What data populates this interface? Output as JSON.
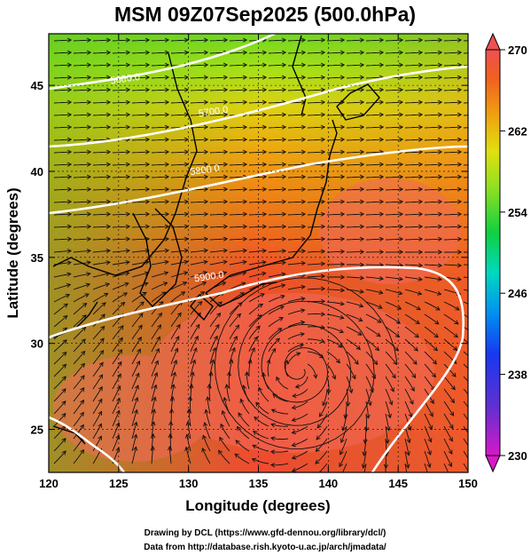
{
  "title": "MSM 09Z07Sep2025 (500.0hPa)",
  "xlabel": "Longitude (degrees)",
  "ylabel": "Latitude  (degrees)",
  "credits": [
    "Drawing by DCL (https://www.gfd-dennou.org/library/dcl/)",
    "Data from http://database.rish.kyoto-u.ac.jp/arch/jmadata/"
  ],
  "chart_data": {
    "type": "heatmap",
    "x_range": [
      120,
      150
    ],
    "y_range": [
      22.5,
      48
    ],
    "x_ticks": [
      120,
      125,
      130,
      135,
      140,
      145,
      150
    ],
    "y_ticks": [
      25,
      30,
      35,
      40,
      45
    ],
    "colorbar": {
      "min": 230,
      "max": 270,
      "ticks": [
        230,
        238,
        246,
        254,
        262,
        270
      ],
      "colors": [
        "#e010d0",
        "#5050e0",
        "#1030f0",
        "#00a0f0",
        "#00e0b0",
        "#20d040",
        "#80e020",
        "#d0e010",
        "#f0c010",
        "#f08010",
        "#f04020",
        "#f06050"
      ]
    },
    "contours": [
      {
        "label": "5600.0",
        "lon": 125.5,
        "lat": 45.2
      },
      {
        "label": "5700.0",
        "lon": 131.8,
        "lat": 43.3
      },
      {
        "label": "5800.0",
        "lon": 131.2,
        "lat": 39.9
      },
      {
        "label": "5900.0",
        "lon": 131.5,
        "lat": 33.7
      }
    ]
  }
}
